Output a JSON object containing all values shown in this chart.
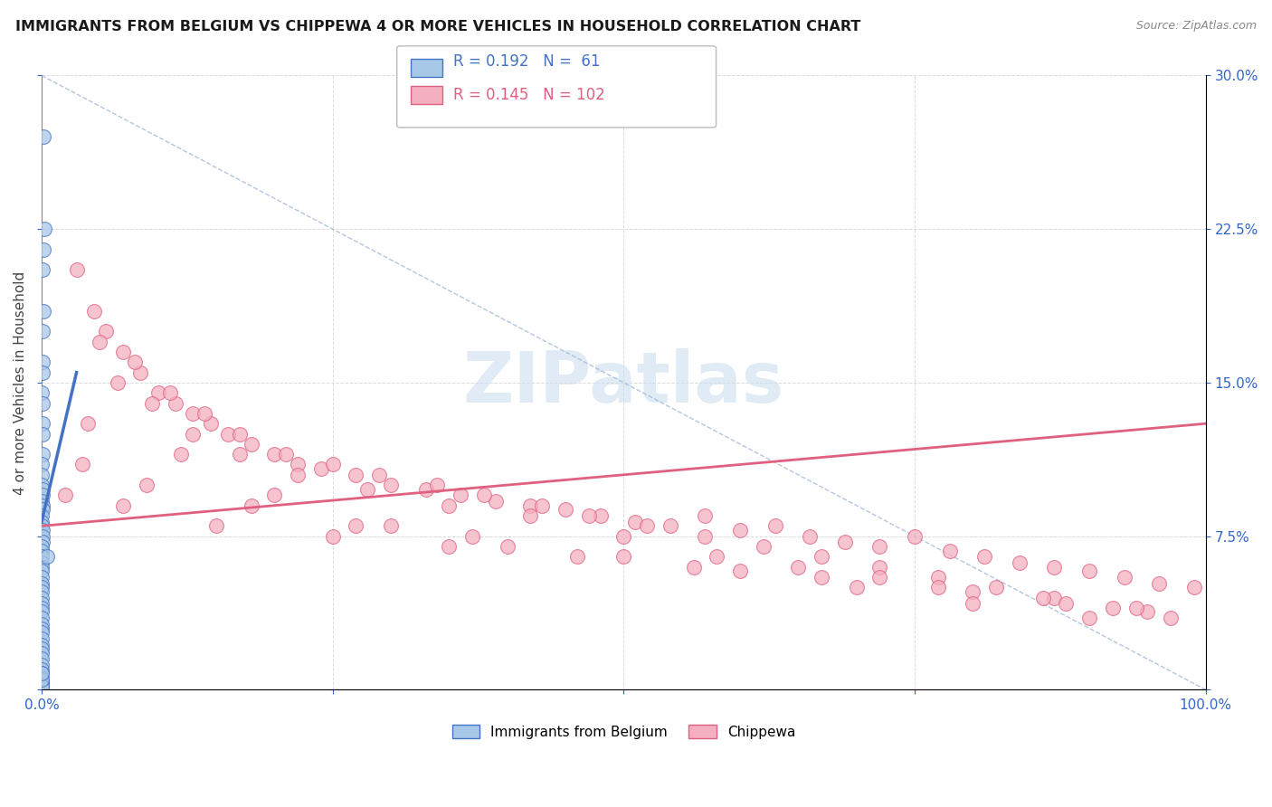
{
  "title": "IMMIGRANTS FROM BELGIUM VS CHIPPEWA 4 OR MORE VEHICLES IN HOUSEHOLD CORRELATION CHART",
  "source_text": "Source: ZipAtlas.com",
  "ylabel": "4 or more Vehicles in Household",
  "xlim": [
    0.0,
    100.0
  ],
  "ylim": [
    0.0,
    30.0
  ],
  "blue_R": 0.192,
  "blue_N": 61,
  "pink_R": 0.145,
  "pink_N": 102,
  "blue_color": "#A8C8E8",
  "pink_color": "#F4B0C0",
  "blue_line_color": "#4472C4",
  "pink_line_color": "#E06080",
  "diag_color": "#A0B8D8",
  "blue_reg_x0": 0.0,
  "blue_reg_y0": 8.2,
  "blue_reg_x1": 3.0,
  "blue_reg_y1": 15.5,
  "pink_reg_x0": 0.0,
  "pink_reg_y0": 8.0,
  "pink_reg_x1": 100.0,
  "pink_reg_y1": 13.0,
  "blue_scatter_x": [
    0.15,
    0.22,
    0.18,
    0.08,
    0.12,
    0.05,
    0.08,
    0.1,
    0.04,
    0.06,
    0.09,
    0.07,
    0.05,
    0.03,
    0.02,
    0.04,
    0.06,
    0.08,
    0.03,
    0.05,
    0.07,
    0.04,
    0.02,
    0.03,
    0.05,
    0.06,
    0.08,
    0.02,
    0.04,
    0.01,
    0.02,
    0.01,
    0.03,
    0.02,
    0.01,
    0.02,
    0.03,
    0.04,
    0.01,
    0.02,
    0.01,
    0.03,
    0.02,
    0.01,
    0.02,
    0.03,
    0.01,
    0.02,
    0.01,
    0.01,
    0.02,
    0.03,
    0.01,
    0.01,
    0.02,
    0.01,
    0.01,
    0.02,
    0.02,
    0.01,
    0.45
  ],
  "blue_scatter_y": [
    27.0,
    22.5,
    21.5,
    20.5,
    18.5,
    17.5,
    16.0,
    15.5,
    14.5,
    14.0,
    13.0,
    12.5,
    11.5,
    11.0,
    10.5,
    10.0,
    9.8,
    9.5,
    9.2,
    9.0,
    8.8,
    8.5,
    8.2,
    8.0,
    7.8,
    7.5,
    7.2,
    7.0,
    6.8,
    6.5,
    6.2,
    6.0,
    5.8,
    5.5,
    5.2,
    5.0,
    4.8,
    4.5,
    4.2,
    4.0,
    3.8,
    3.5,
    3.2,
    3.0,
    2.8,
    2.5,
    2.2,
    2.0,
    1.8,
    1.5,
    1.2,
    1.0,
    0.8,
    0.6,
    0.4,
    0.3,
    0.2,
    0.15,
    0.5,
    0.8,
    6.5
  ],
  "pink_scatter_x": [
    3.0,
    4.5,
    5.5,
    7.0,
    8.5,
    10.0,
    11.5,
    13.0,
    14.5,
    16.0,
    18.0,
    20.0,
    22.0,
    24.0,
    27.0,
    30.0,
    33.0,
    36.0,
    39.0,
    42.0,
    45.0,
    48.0,
    51.0,
    54.0,
    57.0,
    60.0,
    63.0,
    66.0,
    69.0,
    72.0,
    75.0,
    78.0,
    81.0,
    84.0,
    87.0,
    90.0,
    93.0,
    96.0,
    99.0,
    5.0,
    8.0,
    11.0,
    14.0,
    17.0,
    21.0,
    25.0,
    29.0,
    34.0,
    38.0,
    43.0,
    47.0,
    52.0,
    57.0,
    62.0,
    67.0,
    72.0,
    77.0,
    82.0,
    87.0,
    92.0,
    97.0,
    6.5,
    9.5,
    13.0,
    17.0,
    22.0,
    28.0,
    35.0,
    42.0,
    50.0,
    58.0,
    65.0,
    72.0,
    80.0,
    88.0,
    95.0,
    4.0,
    12.0,
    20.0,
    30.0,
    40.0,
    50.0,
    60.0,
    70.0,
    80.0,
    90.0,
    2.0,
    7.0,
    15.0,
    25.0,
    35.0,
    46.0,
    56.0,
    67.0,
    77.0,
    86.0,
    94.0,
    3.5,
    9.0,
    18.0,
    27.0,
    37.0
  ],
  "pink_scatter_y": [
    20.5,
    18.5,
    17.5,
    16.5,
    15.5,
    14.5,
    14.0,
    13.5,
    13.0,
    12.5,
    12.0,
    11.5,
    11.0,
    10.8,
    10.5,
    10.0,
    9.8,
    9.5,
    9.2,
    9.0,
    8.8,
    8.5,
    8.2,
    8.0,
    8.5,
    7.8,
    8.0,
    7.5,
    7.2,
    7.0,
    7.5,
    6.8,
    6.5,
    6.2,
    6.0,
    5.8,
    5.5,
    5.2,
    5.0,
    17.0,
    16.0,
    14.5,
    13.5,
    12.5,
    11.5,
    11.0,
    10.5,
    10.0,
    9.5,
    9.0,
    8.5,
    8.0,
    7.5,
    7.0,
    6.5,
    6.0,
    5.5,
    5.0,
    4.5,
    4.0,
    3.5,
    15.0,
    14.0,
    12.5,
    11.5,
    10.5,
    9.8,
    9.0,
    8.5,
    7.5,
    6.5,
    6.0,
    5.5,
    4.8,
    4.2,
    3.8,
    13.0,
    11.5,
    9.5,
    8.0,
    7.0,
    6.5,
    5.8,
    5.0,
    4.2,
    3.5,
    9.5,
    9.0,
    8.0,
    7.5,
    7.0,
    6.5,
    6.0,
    5.5,
    5.0,
    4.5,
    4.0,
    11.0,
    10.0,
    9.0,
    8.0,
    7.5
  ]
}
